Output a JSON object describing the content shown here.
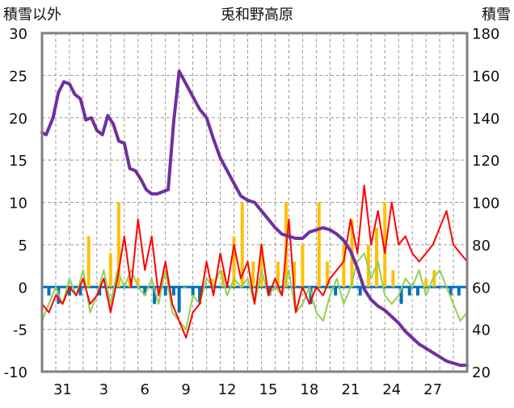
{
  "chart_data": {
    "type": "line",
    "title": "兎和野高原",
    "left_axis_label": "積雪以外",
    "right_axis_label": "積雪",
    "left_ylim": [
      -10,
      30
    ],
    "right_ylim": [
      20,
      180
    ],
    "left_ticks": [
      30,
      25,
      20,
      15,
      10,
      5,
      0,
      -5,
      -10
    ],
    "right_ticks": [
      180,
      160,
      140,
      120,
      100,
      80,
      60,
      40,
      20
    ],
    "x_tick_labels": [
      "31",
      "3",
      "6",
      "9",
      "12",
      "15",
      "18",
      "21",
      "24",
      "27"
    ],
    "grid": true,
    "colors": {
      "snow_depth": "#7030a0",
      "temperature_max": "#ff0000",
      "temperature_min": "#92d050",
      "precip_positive": "#ffc000",
      "precip_negative": "#0070c0",
      "zero_line": "#0070c0",
      "frame": "#7f7f7f"
    },
    "series": [
      {
        "key": "snow_depth",
        "axis": "right",
        "x": [
          0,
          0.3,
          0.8,
          1.2,
          1.6,
          2.0,
          2.4,
          2.8,
          3.2,
          3.6,
          4.0,
          4.4,
          4.8,
          5.2,
          5.6,
          6.0,
          6.4,
          6.8,
          7.2,
          7.6,
          8.0,
          8.4,
          8.8,
          9.2,
          9.6,
          10.0,
          10.5,
          11.0,
          11.5,
          12.0,
          12.5,
          13.0,
          13.5,
          14.0,
          14.5,
          15.0,
          15.5,
          16.0,
          16.5,
          17.0,
          17.5,
          18.0,
          18.5,
          19.0,
          19.5,
          20.0,
          20.5,
          21.0,
          21.5,
          22.0,
          22.5,
          23.0,
          23.5,
          24.0,
          24.5,
          25.0,
          25.5,
          26.0,
          26.5,
          27.0,
          27.5,
          28.0,
          28.5,
          29.0,
          29.5,
          30.0,
          30.5,
          31.0
        ],
        "values": [
          133,
          132,
          140,
          152,
          157,
          156,
          151,
          149,
          139,
          140,
          134,
          132,
          141,
          137,
          129,
          128,
          116,
          115,
          111,
          106,
          104,
          104,
          105,
          106,
          138,
          162,
          156,
          150,
          144,
          140,
          130,
          121,
          115,
          109,
          103,
          101,
          100,
          96,
          92,
          88,
          85,
          84,
          83,
          83,
          86,
          87,
          88,
          87,
          85,
          82,
          77,
          69,
          59,
          54,
          51,
          49,
          46,
          43,
          39,
          36,
          33,
          31,
          29,
          27,
          25,
          24,
          23,
          23
        ]
      },
      {
        "key": "temperature_max",
        "axis": "left",
        "x": [
          0,
          0.5,
          1.0,
          1.5,
          2.0,
          2.5,
          3.0,
          3.5,
          4.0,
          4.5,
          5.0,
          5.5,
          6.0,
          6.5,
          7.0,
          7.5,
          8.0,
          8.5,
          9.0,
          9.5,
          10.0,
          10.5,
          11.0,
          11.5,
          12.0,
          12.5,
          13.0,
          13.5,
          14.0,
          14.5,
          15.0,
          15.5,
          16.0,
          16.5,
          17.0,
          17.5,
          18.0,
          18.5,
          19.0,
          19.5,
          20.0,
          20.5,
          21.0,
          21.5,
          22.0,
          22.5,
          23.0,
          23.5,
          24.0,
          24.5,
          25.0,
          25.5,
          26.0,
          26.5,
          27.0,
          27.5,
          28.0,
          28.5,
          29.0,
          29.5,
          30.0,
          30.5,
          31.0
        ],
        "values": [
          -2,
          -3,
          -1,
          -2,
          0,
          -1,
          1,
          -2,
          -1,
          1,
          -3,
          1,
          6,
          0,
          8,
          2,
          6,
          -1,
          3,
          -2,
          -4,
          -6,
          -3,
          -2,
          3,
          -1,
          4,
          0,
          5,
          1,
          3,
          -2,
          5,
          -1,
          1,
          -1,
          8,
          -3,
          0,
          -2,
          0,
          -1,
          1,
          2,
          3,
          8,
          4,
          12,
          5,
          9,
          4,
          10,
          5,
          6,
          4,
          3,
          4,
          5,
          7,
          9,
          5,
          4,
          3
        ]
      },
      {
        "key": "temperature_min",
        "axis": "left",
        "x": [
          0,
          0.5,
          1.0,
          1.5,
          2.0,
          2.5,
          3.0,
          3.5,
          4.0,
          4.5,
          5.0,
          5.5,
          6.0,
          6.5,
          7.0,
          7.5,
          8.0,
          8.5,
          9.0,
          9.5,
          10.0,
          10.5,
          11.0,
          11.5,
          12.0,
          12.5,
          13.0,
          13.5,
          14.0,
          14.5,
          15.0,
          15.5,
          16.0,
          16.5,
          17.0,
          17.5,
          18.0,
          18.5,
          19.0,
          19.5,
          20.0,
          20.5,
          21.0,
          21.5,
          22.0,
          22.5,
          23.0,
          23.5,
          24.0,
          24.5,
          25.0,
          25.5,
          26.0,
          26.5,
          27.0,
          27.5,
          28.0,
          28.5,
          29.0,
          29.5,
          30.0,
          30.5,
          31.0
        ],
        "values": [
          -4,
          -2,
          0,
          -2,
          1,
          -1,
          2,
          -3,
          -1,
          2,
          -2,
          2,
          0,
          2,
          0,
          -1,
          1,
          -2,
          2,
          -3,
          -4,
          -5,
          -1,
          -2,
          1,
          0,
          2,
          -1,
          1,
          0,
          1,
          -2,
          2,
          -1,
          0,
          -1,
          2,
          -3,
          -2,
          0,
          -3,
          -4,
          -1,
          1,
          -2,
          0,
          3,
          4,
          1,
          3,
          -1,
          -2,
          -1,
          1,
          0,
          2,
          -1,
          1,
          2,
          0,
          -2,
          -4,
          -3
        ]
      }
    ],
    "bars": {
      "axis": "left",
      "x": [
        0.5,
        1.2,
        2.0,
        2.8,
        3.4,
        4.2,
        5.0,
        5.6,
        6.4,
        7.0,
        7.5,
        8.2,
        9.0,
        9.6,
        10.0,
        10.4,
        11.0,
        11.5,
        12.4,
        13.2,
        14.0,
        14.6,
        15.4,
        16.0,
        16.6,
        17.2,
        17.8,
        18.4,
        19.0,
        19.6,
        20.2,
        20.8,
        21.4,
        22.0,
        22.6,
        23.2,
        23.8,
        24.4,
        25.0,
        25.6,
        26.2,
        26.8,
        27.4,
        28.0,
        28.6,
        29.2,
        29.8,
        30.4
      ],
      "values": [
        -1,
        -2,
        -1,
        -1,
        6,
        -1,
        4,
        10,
        1,
        1,
        -1,
        -2,
        -1,
        -1,
        -3,
        0,
        -1,
        -2,
        1,
        2,
        6,
        10,
        3,
        5,
        -1,
        3,
        10,
        3,
        5,
        -2,
        10,
        3,
        -1,
        5,
        8,
        -1,
        5,
        7,
        10,
        2,
        -2,
        -1,
        -1,
        1,
        2,
        0,
        -1,
        -1
      ]
    }
  }
}
